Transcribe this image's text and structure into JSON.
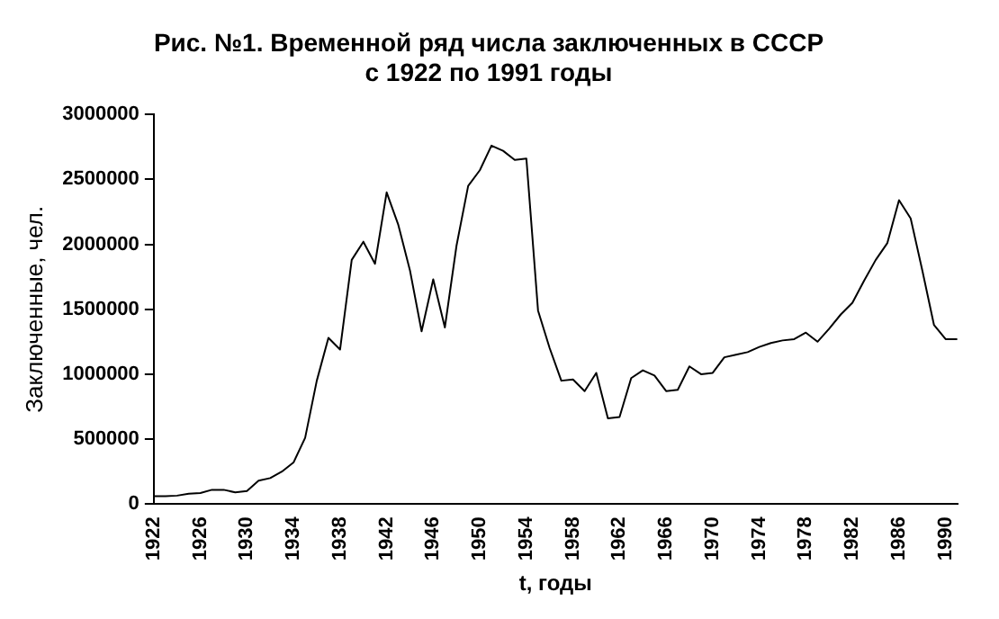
{
  "chart_data": {
    "type": "line",
    "title": "Рис. №1. Временной ряд числа заключенных в СССР\nс 1922 по 1991 годы",
    "xlabel": "t, годы",
    "ylabel": "Заключенные, чел.",
    "categories": [
      "1922",
      null,
      null,
      null,
      "1926",
      null,
      null,
      null,
      "1930",
      null,
      null,
      null,
      "1934",
      null,
      null,
      null,
      "1938",
      null,
      null,
      null,
      "1942",
      null,
      null,
      null,
      "1946",
      null,
      null,
      null,
      "1950",
      null,
      null,
      null,
      "1954",
      null,
      null,
      null,
      "1958",
      null,
      null,
      null,
      "1962",
      null,
      null,
      null,
      "1966",
      null,
      null,
      null,
      "1970",
      null,
      null,
      null,
      "1974",
      null,
      null,
      null,
      "1978",
      null,
      null,
      null,
      "1982",
      null,
      null,
      null,
      "1986",
      null,
      null,
      null,
      "1990",
      null
    ],
    "series": [
      {
        "color": "#000000",
        "values": [
          60000,
          60000,
          65000,
          80000,
          85000,
          110000,
          110000,
          90000,
          100000,
          180000,
          200000,
          250000,
          320000,
          510000,
          950000,
          1280000,
          1190000,
          1880000,
          2020000,
          1850000,
          2400000,
          2150000,
          1800000,
          1330000,
          1730000,
          1360000,
          1990000,
          2450000,
          2570000,
          2760000,
          2720000,
          2650000,
          2660000,
          1490000,
          1200000,
          950000,
          960000,
          870000,
          1010000,
          660000,
          670000,
          970000,
          1030000,
          990000,
          870000,
          880000,
          1060000,
          1000000,
          1010000,
          1130000,
          1150000,
          1170000,
          1210000,
          1240000,
          1260000,
          1270000,
          1320000,
          1250000,
          1350000,
          1460000,
          1550000,
          1720000,
          1880000,
          2010000,
          2340000,
          2200000,
          1800000,
          1380000,
          1270000,
          1270000
        ]
      }
    ],
    "ylim": [
      0,
      3000000
    ],
    "yticks": [
      0,
      500000,
      1000000,
      1500000,
      2000000,
      2500000,
      3000000
    ],
    "grid": false,
    "legend": false,
    "marker": "none",
    "line_style": "solid"
  }
}
